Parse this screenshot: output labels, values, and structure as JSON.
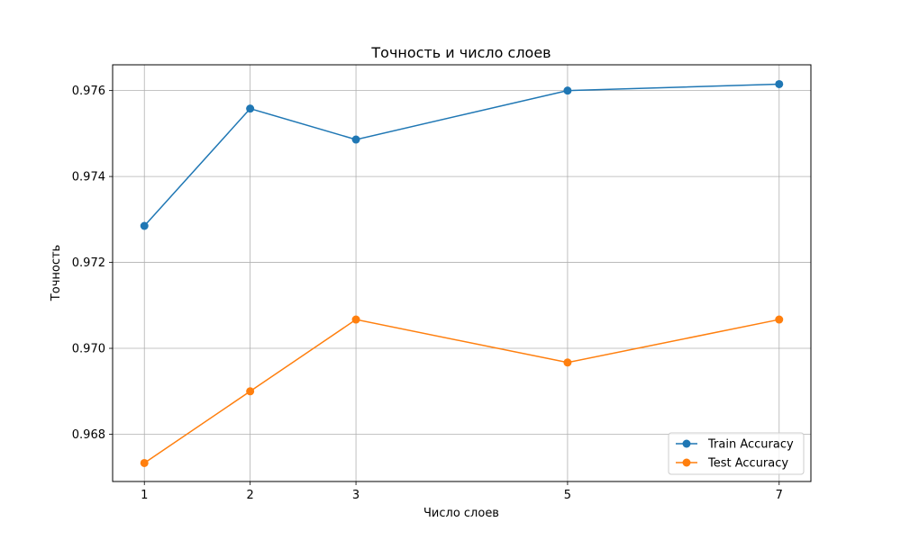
{
  "chart_data": {
    "type": "line",
    "title": "Точность и число слоев",
    "xlabel": "Число слоев",
    "ylabel": "Точность",
    "x": [
      1,
      2,
      3,
      5,
      7
    ],
    "x_ticks": [
      "1",
      "2",
      "3",
      "5",
      "7"
    ],
    "xlim": [
      0.7,
      7.3
    ],
    "y_ticks": [
      "0.968",
      "0.970",
      "0.972",
      "0.974",
      "0.976"
    ],
    "ylim": [
      0.9669,
      0.9766
    ],
    "grid": true,
    "legend_position": "lower-right",
    "series": [
      {
        "name": "Train Accuracy",
        "color": "#1f77b4",
        "marker": "circle",
        "values": [
          0.97285,
          0.97558,
          0.97486,
          0.976,
          0.97615
        ]
      },
      {
        "name": "Test Accuracy",
        "color": "#ff7f0e",
        "marker": "circle",
        "values": [
          0.96733,
          0.969,
          0.97067,
          0.96967,
          0.97067
        ]
      }
    ]
  }
}
